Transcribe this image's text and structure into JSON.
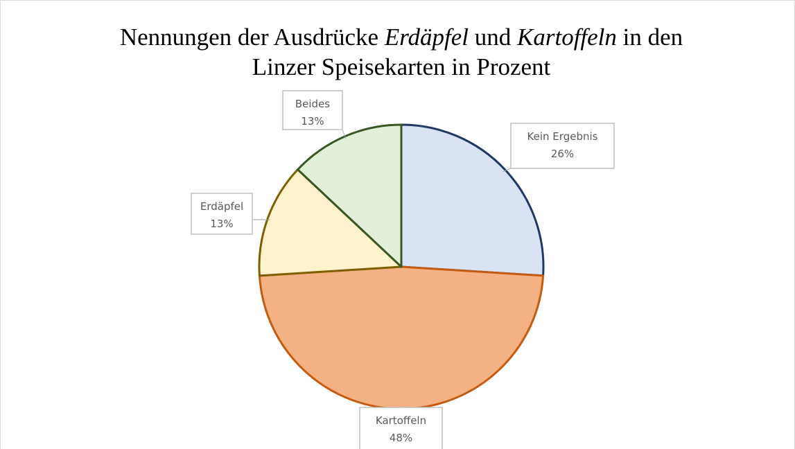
{
  "chart_data": {
    "type": "pie",
    "title": [
      [
        {
          "text": "Nennungen der Ausdrücke ",
          "italic": false
        },
        {
          "text": "Erdäpfel",
          "italic": true
        },
        {
          "text": " und ",
          "italic": false
        },
        {
          "text": "Kartoffeln",
          "italic": true
        },
        {
          "text": " in den",
          "italic": false
        }
      ],
      [
        {
          "text": "Linzer Speisekarten in Prozent",
          "italic": false
        }
      ]
    ],
    "categories": [
      "Kein Ergebnis",
      "Kartoffeln",
      "Erdäpfel",
      "Beides"
    ],
    "values": [
      26,
      48,
      13,
      13
    ],
    "value_labels": [
      "26%",
      "48%",
      "13%",
      "13%"
    ],
    "colors": [
      "#dae3f3",
      "#f4b183",
      "#fff2cc",
      "#e2f0d9"
    ],
    "edge_colors": [
      "#203864",
      "#c55a11",
      "#7f6000",
      "#385723"
    ]
  }
}
